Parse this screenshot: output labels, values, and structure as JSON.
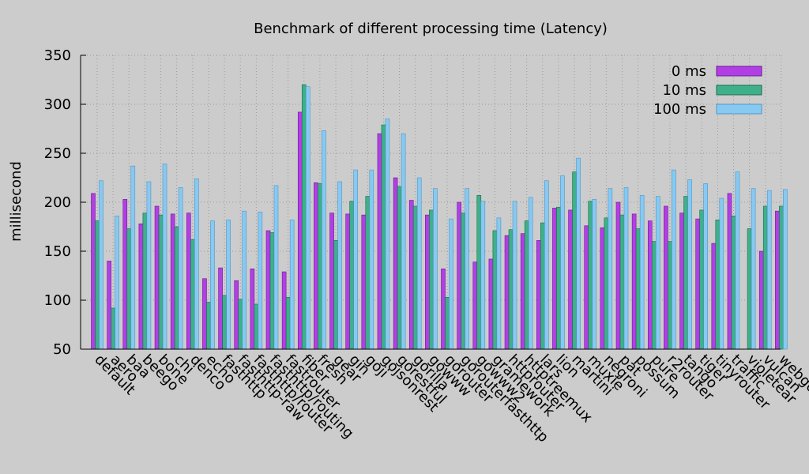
{
  "chart_data": {
    "type": "bar",
    "title": "Benchmark of different processing time (Latency)",
    "xlabel": "",
    "ylabel": "millisecond",
    "ylim": [
      50,
      350
    ],
    "yticks": [
      50,
      100,
      150,
      200,
      250,
      300,
      350
    ],
    "grid": true,
    "legend_position": "top-right",
    "categories": [
      "default",
      "aero",
      "baa",
      "beego",
      "bone",
      "chi",
      "denco",
      "echo",
      "fasthttp",
      "fasthttp-raw",
      "fasthttp/router",
      "fasthttp/routing",
      "fastrouter",
      "fiber",
      "fresh",
      "gear",
      "gin",
      "goji",
      "gojsonrest",
      "gorestful",
      "gorilla",
      "gowww",
      "gorouter",
      "gorouterfasthttp",
      "gowww2",
      "gramework",
      "httprouter",
      "httptreemux",
      "lars",
      "lion",
      "martini",
      "muxie",
      "negroni",
      "pat",
      "possum",
      "pure",
      "r2router",
      "tango",
      "tiger",
      "tinyrouter",
      "traffic",
      "violetear",
      "vulcan",
      "webgo"
    ],
    "series": [
      {
        "name": "0 ms",
        "color": "#b23fe6",
        "stroke": "#6a1a8f",
        "values": [
          209,
          140,
          203,
          178,
          196,
          188,
          189,
          122,
          133,
          120,
          132,
          171,
          129,
          292,
          220,
          189,
          188,
          187,
          270,
          225,
          202,
          187,
          132,
          200,
          139,
          142,
          166,
          168,
          161,
          194,
          192,
          176,
          174,
          200,
          188,
          181,
          196,
          189,
          183,
          158,
          209,
          null,
          150,
          191
        ]
      },
      {
        "name": "10 ms",
        "color": "#3eb08a",
        "stroke": "#1c6a50",
        "values": [
          181,
          92,
          173,
          189,
          187,
          175,
          162,
          98,
          105,
          101,
          96,
          169,
          103,
          320,
          219,
          161,
          201,
          206,
          279,
          216,
          196,
          192,
          103,
          189,
          207,
          171,
          172,
          181,
          179,
          195,
          231,
          201,
          184,
          187,
          173,
          160,
          160,
          206,
          192,
          182,
          186,
          173,
          196,
          196
        ]
      },
      {
        "name": "100 ms",
        "color": "#88c9f2",
        "stroke": "#4e96c6",
        "values": [
          222,
          186,
          237,
          221,
          239,
          215,
          224,
          181,
          182,
          191,
          190,
          217,
          182,
          318,
          273,
          221,
          233,
          233,
          285,
          270,
          225,
          214,
          183,
          214,
          201,
          184,
          201,
          205,
          222,
          227,
          245,
          203,
          214,
          215,
          207,
          206,
          233,
          223,
          219,
          204,
          231,
          214,
          212,
          213
        ]
      }
    ]
  }
}
